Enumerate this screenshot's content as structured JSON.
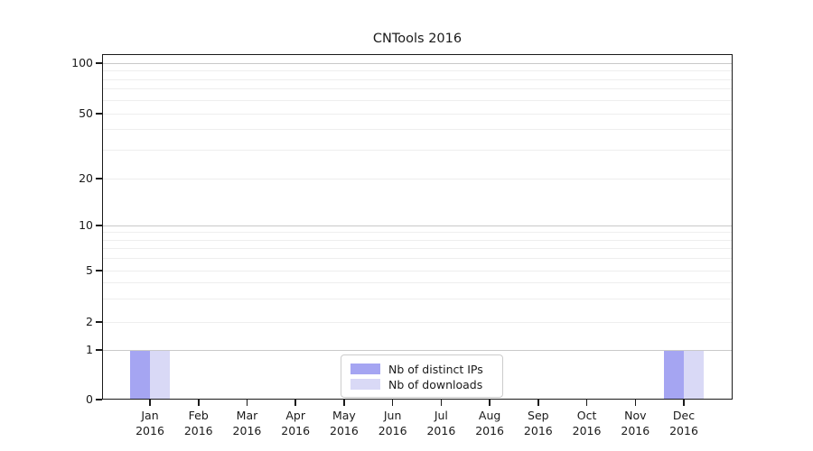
{
  "figure": {
    "background": "#ffffff"
  },
  "chart_data": {
    "type": "bar",
    "title": "CNTools 2016",
    "categories": [
      {
        "month": "Jan",
        "year": "2016"
      },
      {
        "month": "Feb",
        "year": "2016"
      },
      {
        "month": "Mar",
        "year": "2016"
      },
      {
        "month": "Apr",
        "year": "2016"
      },
      {
        "month": "May",
        "year": "2016"
      },
      {
        "month": "Jun",
        "year": "2016"
      },
      {
        "month": "Jul",
        "year": "2016"
      },
      {
        "month": "Aug",
        "year": "2016"
      },
      {
        "month": "Sep",
        "year": "2016"
      },
      {
        "month": "Oct",
        "year": "2016"
      },
      {
        "month": "Nov",
        "year": "2016"
      },
      {
        "month": "Dec",
        "year": "2016"
      }
    ],
    "series": [
      {
        "name": "Nb of distinct IPs",
        "color": "#a5a5f2",
        "values": [
          1,
          0,
          0,
          0,
          0,
          0,
          0,
          0,
          0,
          0,
          0,
          1
        ]
      },
      {
        "name": "Nb of downloads",
        "color": "#d9d9f6",
        "values": [
          1,
          0,
          0,
          0,
          0,
          0,
          0,
          0,
          0,
          0,
          0,
          1
        ]
      }
    ],
    "xlabel": "",
    "ylabel": "",
    "yticks": [
      0,
      1,
      2,
      5,
      10,
      20,
      50,
      100
    ],
    "major_gridlines": [
      1,
      10,
      100
    ],
    "minor_gridlines": [
      2,
      3,
      4,
      5,
      6,
      7,
      8,
      9,
      20,
      30,
      40,
      50,
      60,
      70,
      80,
      90
    ],
    "yscale": "log-like with linear 0-1 segment",
    "ylim": [
      0,
      115
    ],
    "grid": true,
    "legend_position": "lower center"
  },
  "colors": {
    "axis": "#1a1a1a",
    "grid_major": "#c9c9c9",
    "grid_minor": "#eeeeee",
    "background": "#ffffff",
    "legend_border": "#cccccc"
  }
}
